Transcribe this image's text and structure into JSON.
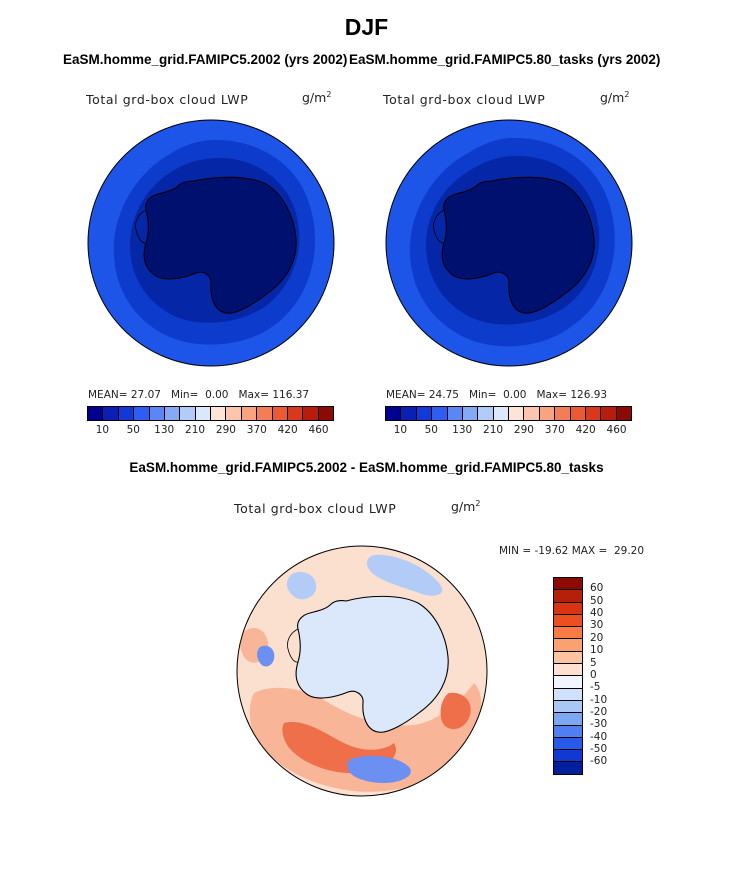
{
  "figure": {
    "title": "DJF"
  },
  "chart_data": [
    {
      "type": "heatmap",
      "projection": "south-polar-stereographic",
      "title": "EaSM.homme_grid.FAMIPC5.2002 (yrs 2002)",
      "variable": "Total grd-box cloud LWP",
      "units_base": "g/m",
      "units_exp": "2",
      "stats": {
        "mean": "27.07",
        "min": "0.00",
        "max": "116.37"
      },
      "stats_labels": {
        "mean": "MEAN=",
        "min": "Min=",
        "max": "Max="
      },
      "colorbar": {
        "levels": [
          "10",
          "50",
          "130",
          "210",
          "290",
          "370",
          "420",
          "460"
        ],
        "colors": [
          "#000090",
          "#0a1fb4",
          "#1238d8",
          "#2f5cf2",
          "#5b86f6",
          "#86a9f4",
          "#b3ccf7",
          "#dbe8fb",
          "#fde4d8",
          "#fbc6ad",
          "#f8a57f",
          "#f37e55",
          "#ea5a33",
          "#d8381b",
          "#b71c0c",
          "#8c0a03"
        ]
      },
      "field": {
        "antarctica": "#00106f",
        "inner_ring": "#0626a8",
        "middle_ring": "#0d3ccd",
        "outer_ring": "#1d55e8"
      }
    },
    {
      "type": "heatmap",
      "projection": "south-polar-stereographic",
      "title": "EaSM.homme_grid.FAMIPC5.80_tasks (yrs 2002)",
      "variable": "Total grd-box cloud LWP",
      "units_base": "g/m",
      "units_exp": "2",
      "stats": {
        "mean": "24.75",
        "min": "0.00",
        "max": "126.93"
      },
      "stats_labels": {
        "mean": "MEAN=",
        "min": "Min=",
        "max": "Max="
      },
      "colorbar": {
        "levels": [
          "10",
          "50",
          "130",
          "210",
          "290",
          "370",
          "420",
          "460"
        ],
        "colors": [
          "#000090",
          "#0a1fb4",
          "#1238d8",
          "#2f5cf2",
          "#5b86f6",
          "#86a9f4",
          "#b3ccf7",
          "#dbe8fb",
          "#fde4d8",
          "#fbc6ad",
          "#f8a57f",
          "#f37e55",
          "#ea5a33",
          "#d8381b",
          "#b71c0c",
          "#8c0a03"
        ]
      },
      "field": {
        "antarctica": "#00106f",
        "inner_ring": "#0626a8",
        "middle_ring": "#0d3ccd",
        "outer_ring": "#1d55e8"
      }
    },
    {
      "type": "heatmap",
      "projection": "south-polar-stereographic",
      "title": "EaSM.homme_grid.FAMIPC5.2002 - EaSM.homme_grid.FAMIPC5.80_tasks",
      "variable": "Total grd-box cloud LWP",
      "units_base": "g/m",
      "units_exp": "2",
      "stats": {
        "min": "-19.62",
        "max": "29.20"
      },
      "stats_labels": {
        "min": "MIN =",
        "max": "MAX ="
      },
      "colorbar": {
        "levels": [
          "60",
          "50",
          "40",
          "30",
          "20",
          "10",
          "5",
          "0",
          "-5",
          "-10",
          "-20",
          "-30",
          "-40",
          "-50",
          "-60"
        ],
        "colors": [
          "#8c0a03",
          "#b52008",
          "#d93412",
          "#ef4e20",
          "#fb7b45",
          "#fba070",
          "#fcc3a2",
          "#fde0cf",
          "#f2f4ff",
          "#cfe1fb",
          "#a9c6f6",
          "#7ea7f3",
          "#4f7ff1",
          "#285ae9",
          "#1238d2",
          "#031f9c"
        ]
      },
      "field": {
        "base": "#fbe0cf",
        "antarctica": "#dbe8fb",
        "positive": "#f9b597",
        "strong_positive": "#ef6f4b",
        "negative": "#b3ccf7",
        "strong_negative": "#6b90f2"
      }
    }
  ]
}
